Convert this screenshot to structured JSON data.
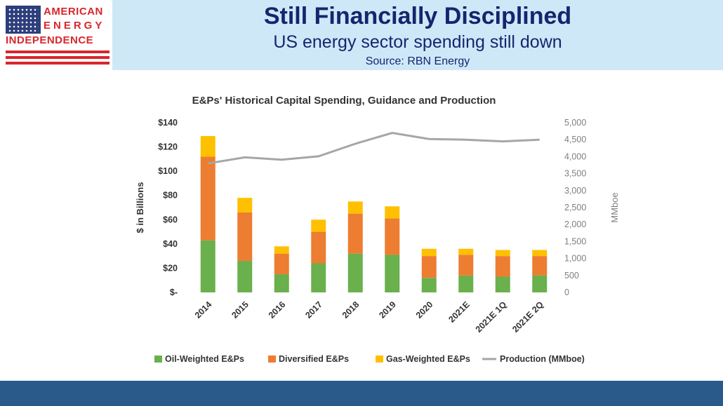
{
  "logo": {
    "line1": "AMERICAN",
    "line2": "ENERGY",
    "line3": "INDEPENDENCE"
  },
  "header": {
    "title": "Still Financially Disciplined",
    "subtitle": "US energy sector spending still down",
    "source": "Source: RBN Energy"
  },
  "colors": {
    "oil": "#6ab04c",
    "diversified": "#ed7d31",
    "gas": "#ffc000",
    "production": "#a6a6a6",
    "header_band": "#cfe8f8",
    "title_text": "#16256e",
    "footer": "#2a5a8a",
    "logo_red": "#d8262c"
  },
  "chart_data": {
    "type": "bar",
    "stacked": true,
    "title": "E&Ps' Historical Capital Spending, Guidance and Production",
    "categories": [
      "2014",
      "2015",
      "2016",
      "2017",
      "2018",
      "2019",
      "2020",
      "2021E",
      "2021E 1Q",
      "2021E 2Q"
    ],
    "series": [
      {
        "name": "Oil-Weighted E&Ps",
        "values": [
          43,
          26,
          15,
          24,
          32,
          31,
          12,
          14,
          13,
          14
        ]
      },
      {
        "name": "Diversified E&Ps",
        "values": [
          69,
          40,
          17,
          26,
          33,
          30,
          18,
          17,
          17,
          16
        ]
      },
      {
        "name": "Gas-Weighted E&Ps",
        "values": [
          17,
          12,
          6,
          10,
          10,
          10,
          6,
          5,
          5,
          5
        ]
      }
    ],
    "line_series": {
      "name": "Production (MMboe)",
      "axis": "secondary",
      "values": [
        3800,
        3980,
        3910,
        4010,
        4380,
        4700,
        4520,
        4500,
        4450,
        4500
      ]
    },
    "ylabel": "$ in Billions",
    "ylim": [
      0,
      140
    ],
    "yticks": [
      "$-",
      "$20",
      "$40",
      "$60",
      "$80",
      "$100",
      "$120",
      "$140"
    ],
    "y2label": "MMboe",
    "y2lim": [
      0,
      5000
    ],
    "y2ticks": [
      "0",
      "500",
      "1,000",
      "1,500",
      "2,000",
      "2,500",
      "3,000",
      "3,500",
      "4,000",
      "4,500",
      "5,000"
    ],
    "grid": false,
    "legend_position": "bottom",
    "legend": [
      "Oil-Weighted E&Ps",
      "Diversified E&Ps",
      "Gas-Weighted E&Ps",
      "Production (MMboe)"
    ]
  }
}
